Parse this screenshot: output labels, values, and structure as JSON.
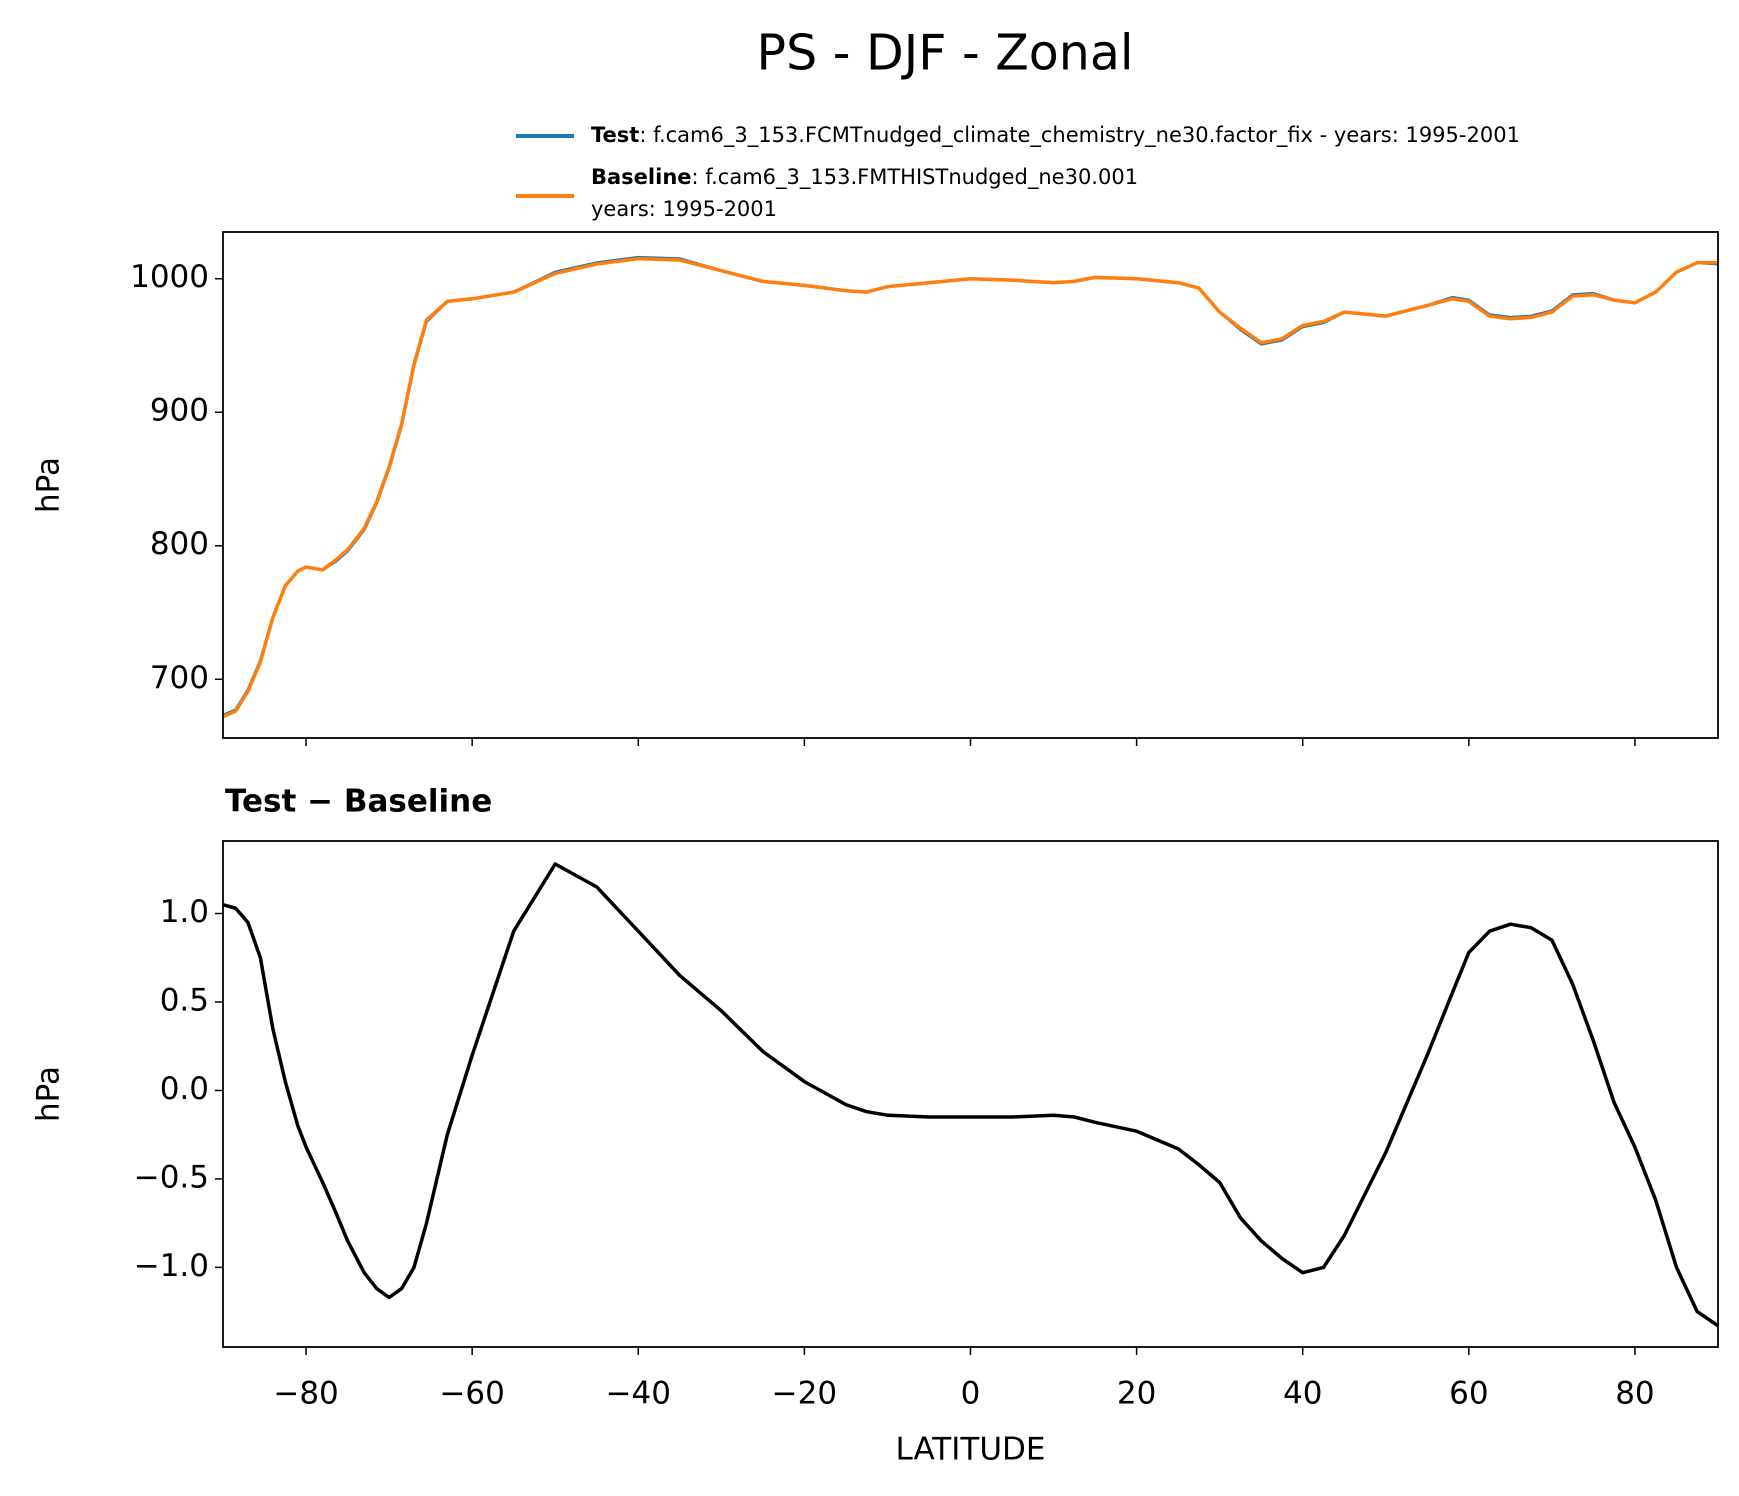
{
  "suptitle": "PS - DJF - Zonal",
  "chart_data": [
    {
      "type": "line",
      "ylabel": "hPa",
      "x": [
        -90,
        -88.5,
        -87,
        -85.5,
        -84,
        -82.5,
        -81,
        -80,
        -78,
        -76.5,
        -75,
        -73,
        -71.5,
        -70,
        -68.5,
        -67,
        -65.5,
        -63,
        -60,
        -55,
        -50,
        -45,
        -40,
        -35,
        -30,
        -25,
        -20,
        -15,
        -12.5,
        -10,
        -5,
        0,
        5,
        10,
        12.5,
        15,
        20,
        25,
        27.5,
        30,
        32.5,
        35,
        37.5,
        40,
        42.5,
        45,
        50,
        55,
        58,
        60,
        62.5,
        65,
        67.5,
        70,
        72.5,
        75,
        77.5,
        80,
        82.5,
        85,
        87.5,
        90
      ],
      "series": [
        {
          "name": "Test",
          "legend_text": [
            ": f.cam6_3_153.FCMTnudged_climate_chemistry_ne30.factor_fix - years: 1995-2001"
          ],
          "color": "#1f77b4",
          "values": [
            673,
            677,
            692,
            714,
            746,
            770,
            781,
            784,
            782,
            788,
            796,
            812,
            832,
            858,
            890,
            935,
            968,
            983,
            985,
            990,
            1005,
            1012,
            1016,
            1015,
            1006,
            998,
            995,
            991,
            990,
            994,
            997,
            1000,
            999,
            997,
            998,
            1001,
            1000,
            997,
            993,
            975,
            962,
            951,
            954,
            964,
            967,
            975,
            972,
            980,
            986,
            984,
            973,
            971,
            972,
            976,
            988,
            989,
            984,
            982,
            990,
            1005,
            1012,
            1011
          ]
        },
        {
          "name": "Baseline",
          "legend_text": [
            ": f.cam6_3_153.FMTHISTnudged_ne30.001",
            "years: 1995-2001"
          ],
          "color": "#ff7f0e",
          "values": [
            672,
            676,
            691,
            713,
            746,
            770,
            781,
            784,
            782,
            789,
            797,
            813,
            833,
            859,
            891,
            936,
            969,
            983,
            985,
            990,
            1004,
            1011,
            1015,
            1014,
            1006,
            998,
            995,
            991,
            990,
            994,
            997,
            1000,
            999,
            997,
            998,
            1001,
            1000,
            997,
            993,
            975,
            963,
            952,
            955,
            965,
            968,
            975,
            972,
            980,
            985,
            983,
            972,
            970,
            971,
            975,
            987,
            988,
            984,
            982,
            990,
            1005,
            1012,
            1012
          ]
        }
      ],
      "xlim": [
        -90,
        90
      ],
      "ylim": [
        656,
        1035
      ],
      "yticks": [
        700,
        800,
        900,
        1000
      ]
    },
    {
      "type": "line",
      "title": "Test − Baseline",
      "xlabel": "LATITUDE",
      "ylabel": "hPa",
      "x": [
        -90,
        -88.5,
        -87,
        -85.5,
        -84,
        -82.5,
        -81,
        -80,
        -78,
        -76.5,
        -75,
        -73,
        -71.5,
        -70,
        -68.5,
        -67,
        -65.5,
        -63,
        -60,
        -55,
        -50,
        -45,
        -40,
        -35,
        -30,
        -25,
        -20,
        -15,
        -12.5,
        -10,
        -5,
        0,
        5,
        10,
        12.5,
        15,
        20,
        25,
        27.5,
        30,
        32.5,
        35,
        37.5,
        40,
        42.5,
        45,
        50,
        55,
        58,
        60,
        62.5,
        65,
        67.5,
        70,
        72.5,
        75,
        77.5,
        80,
        82.5,
        85,
        87.5,
        90
      ],
      "series": [
        {
          "color": "#000000",
          "values": [
            1.05,
            1.03,
            0.95,
            0.75,
            0.35,
            0.05,
            -0.2,
            -0.32,
            -0.52,
            -0.68,
            -0.85,
            -1.03,
            -1.12,
            -1.17,
            -1.12,
            -1.0,
            -0.75,
            -0.25,
            0.2,
            0.9,
            1.28,
            1.15,
            0.9,
            0.65,
            0.45,
            0.22,
            0.05,
            -0.08,
            -0.12,
            -0.14,
            -0.15,
            -0.15,
            -0.15,
            -0.14,
            -0.15,
            -0.18,
            -0.23,
            -0.33,
            -0.42,
            -0.52,
            -0.72,
            -0.85,
            -0.95,
            -1.03,
            -1.0,
            -0.82,
            -0.35,
            0.2,
            0.55,
            0.78,
            0.9,
            0.94,
            0.92,
            0.85,
            0.6,
            0.28,
            -0.07,
            -0.32,
            -0.62,
            -1.0,
            -1.25,
            -1.33
          ]
        }
      ],
      "xlim": [
        -90,
        90
      ],
      "ylim": [
        -1.45,
        1.41
      ],
      "xticks": [
        {
          "value": -80,
          "label": "−80"
        },
        {
          "value": -60,
          "label": "−60"
        },
        {
          "value": -40,
          "label": "−40"
        },
        {
          "value": -20,
          "label": "−20"
        },
        0,
        20,
        40,
        60,
        80
      ],
      "yticks": [
        {
          "value": -1,
          "label": "−1.0"
        },
        {
          "value": -0.5,
          "label": "−0.5"
        },
        {
          "value": 0,
          "label": "0.0"
        },
        0.5,
        {
          "value": 1,
          "label": "1.0"
        }
      ]
    }
  ]
}
